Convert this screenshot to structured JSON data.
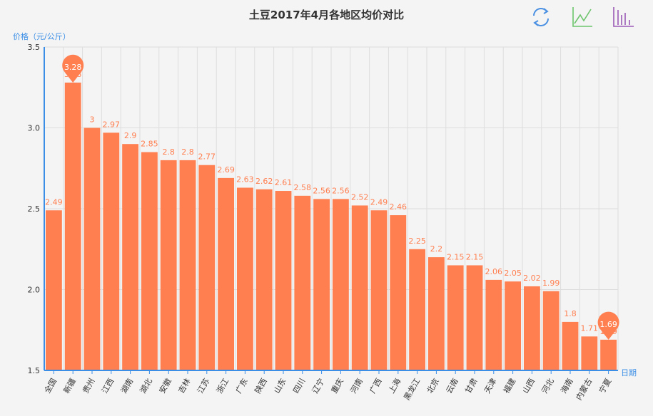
{
  "toolbox": {
    "restore_color": "#4a90e2",
    "line_color": "#6cc46c",
    "bar_color": "#9b59b6"
  },
  "chart_data": {
    "type": "bar",
    "title": "土豆2017年4月各地区均价对比",
    "ylabel": "价格（元/公斤）",
    "xlabel": "日期",
    "ylim": [
      1.5,
      3.5
    ],
    "yticks": [
      "1.5",
      "2.0",
      "2.5",
      "3.0",
      "3.5"
    ],
    "grid": true,
    "bar_color": "#ff7f50",
    "axis_color": "#3a8ee6",
    "categories": [
      "全国",
      "新疆",
      "贵州",
      "江西",
      "湖南",
      "湖北",
      "安徽",
      "吉林",
      "江苏",
      "浙江",
      "广东",
      "陕西",
      "山东",
      "四川",
      "辽宁",
      "重庆",
      "河南",
      "广西",
      "上海",
      "黑龙江",
      "北京",
      "云南",
      "甘肃",
      "天津",
      "福建",
      "山西",
      "河北",
      "海南",
      "内蒙古",
      "宁夏"
    ],
    "values": [
      2.49,
      3.28,
      3,
      2.97,
      2.9,
      2.85,
      2.8,
      2.8,
      2.77,
      2.69,
      2.63,
      2.62,
      2.61,
      2.58,
      2.56,
      2.56,
      2.52,
      2.49,
      2.46,
      2.25,
      2.2,
      2.15,
      2.15,
      2.06,
      2.05,
      2.02,
      1.99,
      1.8,
      1.71,
      1.69
    ],
    "mark_points": [
      {
        "name": "max",
        "value": 3.28,
        "index": 1
      },
      {
        "name": "min",
        "value": 1.69,
        "index": 29
      }
    ]
  }
}
